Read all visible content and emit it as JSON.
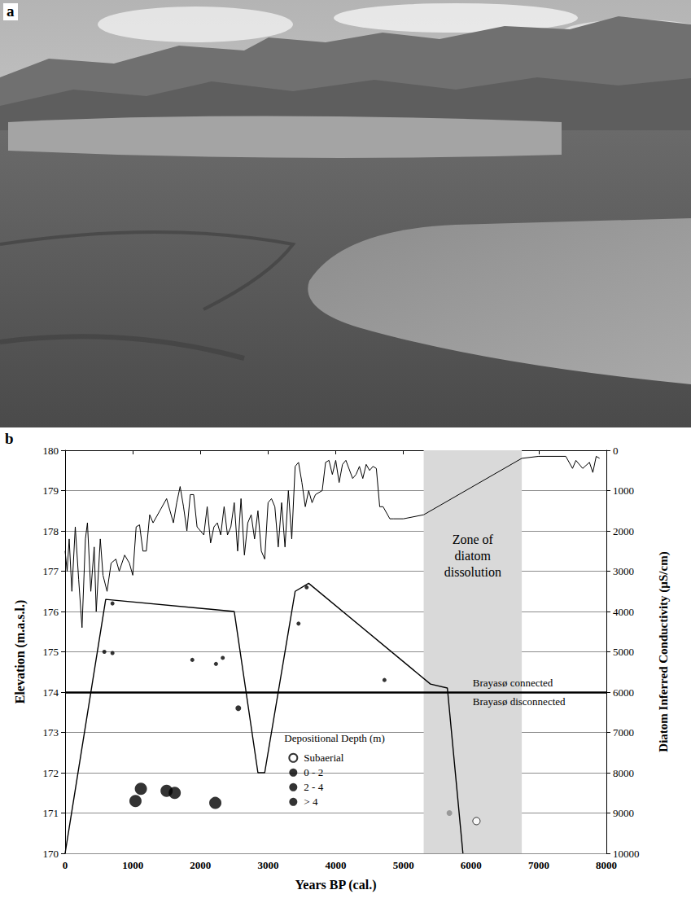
{
  "photo": {
    "label": "a"
  },
  "chart_data": {
    "label": "b",
    "type": "line",
    "x_label": "Years BP (cal.)",
    "y_label": "Elevation (m.a.s.l.)",
    "y2_label": "Diatom Inferred Conductivity (µS/cm)",
    "xlim": [
      0,
      8000
    ],
    "xticks": [
      0,
      1000,
      2000,
      3000,
      4000,
      5000,
      6000,
      7000,
      8000
    ],
    "ylim": [
      170,
      180
    ],
    "yticks": [
      170,
      171,
      172,
      173,
      174,
      175,
      176,
      177,
      178,
      179,
      180
    ],
    "y2lim": [
      10000,
      0
    ],
    "y2ticks": [
      0,
      1000,
      2000,
      3000,
      4000,
      5000,
      6000,
      7000,
      8000,
      9000,
      10000
    ],
    "grid": true,
    "legend": "bottom",
    "legend_title": "Depositional Depth (m)",
    "shaded_zone": {
      "x": [
        5300,
        6750
      ],
      "label": "Zone of diatom dissolution",
      "color": "#d9d9d9"
    },
    "threshold": {
      "y": 174,
      "above": "Brayasø connected",
      "below": "Brayasø disconnected"
    },
    "series": [
      {
        "type": "line",
        "axis": "y2",
        "color": "#000000",
        "x": [
          0,
          30,
          60,
          100,
          150,
          200,
          250,
          300,
          330,
          380,
          430,
          460,
          520,
          560,
          620,
          680,
          750,
          800,
          880,
          950,
          1000,
          1050,
          1100,
          1150,
          1200,
          1250,
          1300,
          1400,
          1500,
          1600,
          1650,
          1700,
          1750,
          1800,
          1850,
          1900,
          1950,
          2000,
          2050,
          2100,
          2150,
          2200,
          2250,
          2300,
          2350,
          2400,
          2450,
          2500,
          2550,
          2600,
          2650,
          2700,
          2750,
          2800,
          2850,
          2900,
          2950,
          3000,
          3050,
          3100,
          3150,
          3200,
          3250,
          3300,
          3350,
          3400,
          3450,
          3500,
          3550,
          3600,
          3650,
          3700,
          3800,
          3850,
          3900,
          3950,
          4000,
          4050,
          4100,
          4150,
          4250,
          4300,
          4350,
          4400,
          4450,
          4500,
          4550,
          4600,
          4650,
          4700,
          4800,
          4850,
          5000,
          5300,
          6750,
          7000,
          7400,
          7500,
          7550,
          7650,
          7750,
          7800,
          7850,
          7900
        ],
        "values": [
          2500,
          3000,
          2200,
          3500,
          1900,
          3200,
          4400,
          2200,
          1800,
          3500,
          2400,
          4000,
          2200,
          3100,
          3500,
          2800,
          2700,
          3000,
          2600,
          2800,
          3100,
          1900,
          1850,
          2500,
          2500,
          1600,
          1800,
          1500,
          1200,
          1800,
          1300,
          900,
          1400,
          2000,
          1100,
          1100,
          1900,
          2000,
          2100,
          1400,
          2300,
          1900,
          1800,
          2100,
          1400,
          2100,
          1900,
          1300,
          2500,
          1200,
          2600,
          1800,
          1600,
          2200,
          1500,
          2500,
          2700,
          1300,
          1200,
          1400,
          2400,
          1300,
          2400,
          1000,
          2200,
          400,
          300,
          800,
          1400,
          1000,
          1300,
          1100,
          1000,
          300,
          250,
          600,
          250,
          800,
          350,
          250,
          700,
          600,
          400,
          700,
          350,
          500,
          400,
          450,
          1400,
          1400,
          1700,
          1700,
          1700,
          1600,
          200,
          150,
          150,
          450,
          250,
          450,
          300,
          550,
          150,
          200
        ]
      },
      {
        "type": "line",
        "axis": "y",
        "color": "#000000",
        "x": [
          0,
          600,
          2500,
          2850,
          2950,
          3400,
          3600,
          5400,
          5650,
          5880
        ],
        "values": [
          170,
          176.3,
          176.0,
          172.0,
          172.0,
          176.5,
          176.7,
          174.2,
          174.1,
          170
        ]
      },
      {
        "type": "scatter",
        "axis": "y",
        "name": "Subaerial",
        "marker": "circle_open",
        "color": "#000000",
        "x": [
          6080
        ],
        "values": [
          170.8
        ]
      },
      {
        "type": "scatter",
        "axis": "y",
        "name": "0 - 2",
        "marker": "circle_small",
        "color": "#000000",
        "x": [
          700,
          580,
          700,
          1880,
          2230,
          2330,
          3450,
          3570,
          4720
        ],
        "values": [
          176.2,
          175.0,
          174.97,
          174.8,
          174.7,
          174.85,
          175.7,
          176.6,
          174.3
        ]
      },
      {
        "type": "scatter",
        "axis": "y",
        "name": "2 - 4",
        "marker": "circle_medium",
        "colors": [
          "#000000",
          "#888888"
        ],
        "x": [
          2560,
          5680
        ],
        "values": [
          173.6,
          171.0
        ]
      },
      {
        "type": "scatter",
        "axis": "y",
        "name": "> 4",
        "marker": "circle_large",
        "color": "#000000",
        "x": [
          1040,
          1120,
          1500,
          1620,
          2220
        ],
        "values": [
          171.3,
          171.6,
          171.55,
          171.5,
          171.25
        ]
      }
    ]
  }
}
